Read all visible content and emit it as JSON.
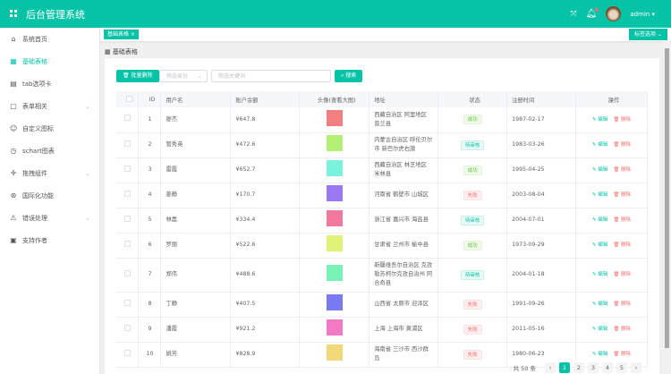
{
  "header": {
    "title": "后台管理系统",
    "user": "admin"
  },
  "sidebar": {
    "items": [
      {
        "label": "系统首页",
        "icon": "home-icon",
        "glyph": "⌂"
      },
      {
        "label": "基础表格",
        "icon": "grid-icon",
        "glyph": "▦",
        "active": true
      },
      {
        "label": "tab选项卡",
        "icon": "copy-icon",
        "glyph": "▤"
      },
      {
        "label": "表单相关",
        "icon": "form-icon",
        "glyph": "▢",
        "sub": true
      },
      {
        "label": "自定义图标",
        "icon": "emoji-icon",
        "glyph": "☺"
      },
      {
        "label": "schart图表",
        "icon": "clock-icon",
        "glyph": "◷"
      },
      {
        "label": "拖拽组件",
        "icon": "drag-icon",
        "glyph": "✛",
        "sub": true
      },
      {
        "label": "国际化功能",
        "icon": "globe-icon",
        "glyph": "⊛"
      },
      {
        "label": "错误处理",
        "icon": "warning-icon",
        "glyph": "⚠",
        "sub": true
      },
      {
        "label": "支持作者",
        "icon": "document-icon",
        "glyph": "▣"
      }
    ]
  },
  "tags": {
    "current": "基础表格",
    "options_label": "标签选项"
  },
  "breadcrumb": "基础表格",
  "toolbar": {
    "batch_delete": "批量删除",
    "address_placeholder": "筛选省份",
    "keyword_placeholder": "筛选关键词",
    "search": "搜索"
  },
  "table": {
    "columns": [
      "ID",
      "用户名",
      "账户余额",
      "头像(查看大图)",
      "地址",
      "状态",
      "注册时间",
      "操作"
    ],
    "edit": "编辑",
    "delete": "删除",
    "rows": [
      {
        "id": "1",
        "name": "廖杰",
        "balance": "¥647.8",
        "avatar_color": "#f28080",
        "address": "西藏自治区 阿里地区 普兰县",
        "status": "成功",
        "status_type": "ok",
        "date": "1987-02-17"
      },
      {
        "id": "2",
        "name": "管秀英",
        "balance": "¥472.6",
        "avatar_color": "#b4f075",
        "address": "内蒙古自治区 呼伦贝尔市 新巴尔虎右旗",
        "status": "待审核",
        "status_type": "pend",
        "date": "1983-03-26"
      },
      {
        "id": "3",
        "name": "雷霞",
        "balance": "¥652.7",
        "avatar_color": "#79f2de",
        "address": "西藏自治区 林芝地区 米林县",
        "status": "成功",
        "status_type": "ok",
        "date": "1995-04-25"
      },
      {
        "id": "4",
        "name": "姜静",
        "balance": "¥170.7",
        "avatar_color": "#9a79f2",
        "address": "河南省 鹤壁市 山城区",
        "status": "失败",
        "status_type": "fail",
        "date": "2003-08-04"
      },
      {
        "id": "5",
        "name": "林磊",
        "balance": "¥334.4",
        "avatar_color": "#f2799d",
        "address": "浙江省 嘉兴市 海盐县",
        "status": "待审核",
        "status_type": "pend",
        "date": "2004-07-01"
      },
      {
        "id": "6",
        "name": "罗丽",
        "balance": "¥522.6",
        "avatar_color": "#e1f279",
        "address": "甘肃省 兰州市 榆中县",
        "status": "成功",
        "status_type": "ok",
        "date": "1973-09-29"
      },
      {
        "id": "7",
        "name": "郑伟",
        "balance": "¥488.6",
        "avatar_color": "#79f2b6",
        "address": "新疆维吾尔自治区 克孜勒苏柯尔克孜自治州 阿合奇县",
        "status": "待审核",
        "status_type": "pend",
        "date": "2004-01-18"
      },
      {
        "id": "8",
        "name": "丁静",
        "balance": "¥407.5",
        "avatar_color": "#7979f2",
        "address": "山西省 太原市 迎泽区",
        "status": "失败",
        "status_type": "fail",
        "date": "1991-09-26"
      },
      {
        "id": "9",
        "name": "潘霞",
        "balance": "¥921.2",
        "avatar_color": "#f279c6",
        "address": "上海 上海市 黄浦区",
        "status": "失败",
        "status_type": "fail",
        "date": "2011-05-16"
      },
      {
        "id": "10",
        "name": "姚芳",
        "balance": "¥828.9",
        "avatar_color": "#f2d879",
        "address": "海南省 三沙市 西沙群岛",
        "status": "失败",
        "status_type": "fail",
        "date": "1980-06-23"
      }
    ]
  },
  "pagination": {
    "total": "共 50 条",
    "pages": [
      "1",
      "2",
      "3",
      "4",
      "5"
    ],
    "current": "1"
  },
  "colors": {
    "primary": "#06c3a7",
    "danger": "#f56c6c",
    "success": "#67c23a"
  }
}
